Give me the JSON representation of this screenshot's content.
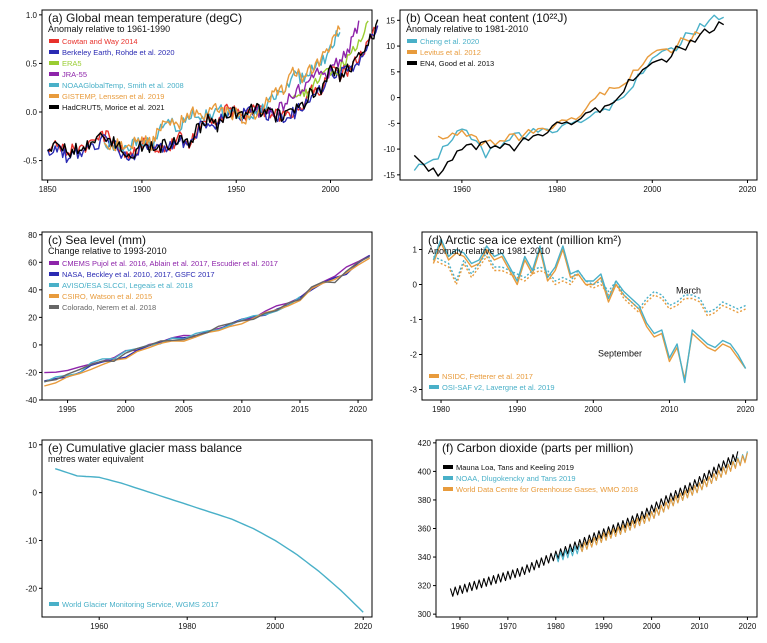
{
  "chart_data": [
    {
      "id": "a",
      "type": "line",
      "title": "(a) Global mean temperature (degC)",
      "subtitle": "Anomaly relative to 1961-1990",
      "xlim": [
        1847,
        2022
      ],
      "ylim": [
        -0.7,
        1.05
      ],
      "xticks": [
        1850,
        1900,
        1950,
        2000
      ],
      "yticks": [
        -0.5,
        0.0,
        0.5,
        1.0
      ],
      "ytick_labels": [
        "-0.5",
        "0.0",
        "0.5",
        "1.0"
      ],
      "legend_placement": "top-left",
      "x_step": 5,
      "series": [
        {
          "name": "Cowtan and Way 2014",
          "color": "#e8312b",
          "x_start": 1850,
          "values": [
            -0.36,
            -0.3,
            -0.4,
            -0.37,
            -0.36,
            -0.32,
            -0.24,
            -0.29,
            -0.4,
            -0.44,
            -0.33,
            -0.36,
            -0.35,
            -0.33,
            -0.27,
            -0.33,
            -0.15,
            -0.07,
            -0.13,
            0.02,
            0.0,
            -0.02,
            0.05,
            0.0,
            -0.03,
            -0.05,
            -0.01,
            0.07,
            0.22,
            0.24,
            0.43,
            0.38,
            0.45,
            0.55,
            0.68,
            0.92
          ]
        },
        {
          "name": "Berkeley Earth, Rohde et al. 2020",
          "color": "#2b2bb3",
          "x_start": 1850,
          "values": [
            -0.42,
            -0.36,
            -0.45,
            -0.42,
            -0.4,
            -0.36,
            -0.28,
            -0.33,
            -0.44,
            -0.48,
            -0.36,
            -0.38,
            -0.37,
            -0.35,
            -0.29,
            -0.35,
            -0.17,
            -0.09,
            -0.15,
            0.0,
            -0.02,
            -0.03,
            0.04,
            0.0,
            -0.04,
            -0.06,
            -0.02,
            0.06,
            0.2,
            0.23,
            0.42,
            0.38,
            0.44,
            0.55,
            0.7,
            0.9
          ]
        },
        {
          "name": "ERA5",
          "color": "#9acd32",
          "x_start": 1980,
          "values": [
            0.08,
            0.2,
            0.22,
            0.42,
            0.4,
            0.46,
            0.56,
            0.72,
            0.95
          ]
        },
        {
          "name": "JRA-55",
          "color": "#8e24aa",
          "x_start": 1960,
          "values": [
            -0.03,
            0.02,
            0.0,
            0.05,
            0.2,
            0.22,
            0.4,
            0.37,
            0.43,
            0.52,
            0.67,
            0.88
          ]
        },
        {
          "name": "NOAAGlobalTemp, Smith et al. 2008",
          "color": "#49b0c8",
          "x_start": 1880,
          "values": [
            -0.38,
            -0.34,
            -0.36,
            -0.33,
            -0.3,
            -0.35,
            -0.17,
            -0.1,
            -0.15,
            -0.01,
            -0.02,
            -0.04,
            0.03,
            -0.02,
            -0.04,
            -0.07,
            -0.03,
            0.04,
            0.19,
            0.2,
            0.4,
            0.35,
            0.42,
            0.5,
            0.64,
            0.86
          ]
        },
        {
          "name": "GISTEMP, Lenssen et al. 2019",
          "color": "#e89b3c",
          "x_start": 1880,
          "values": [
            -0.36,
            -0.33,
            -0.35,
            -0.31,
            -0.28,
            -0.33,
            -0.15,
            -0.09,
            -0.13,
            0.0,
            -0.01,
            -0.03,
            0.04,
            -0.01,
            -0.03,
            -0.06,
            -0.02,
            0.06,
            0.21,
            0.23,
            0.42,
            0.37,
            0.44,
            0.54,
            0.68,
            0.9
          ]
        },
        {
          "name": "HadCRUT5, Morice et al. 2021",
          "color": "#000000",
          "x_start": 1850,
          "values": [
            -0.38,
            -0.31,
            -0.41,
            -0.39,
            -0.37,
            -0.33,
            -0.25,
            -0.3,
            -0.41,
            -0.45,
            -0.34,
            -0.37,
            -0.36,
            -0.34,
            -0.28,
            -0.34,
            -0.16,
            -0.08,
            -0.14,
            0.01,
            -0.01,
            -0.02,
            0.05,
            0.0,
            -0.03,
            -0.05,
            -0.01,
            0.07,
            0.21,
            0.24,
            0.43,
            0.38,
            0.45,
            0.55,
            0.69,
            0.91
          ]
        }
      ]
    },
    {
      "id": "b",
      "type": "line",
      "title": "(b) Ocean heat content (10²²J)",
      "subtitle": "Anomaly relative to 1981-2010",
      "xlim": [
        1947,
        2022
      ],
      "ylim": [
        -16,
        17
      ],
      "xticks": [
        1960,
        1980,
        2000,
        2020
      ],
      "yticks": [
        -15,
        -10,
        -5,
        0,
        5,
        10,
        15
      ],
      "ytick_labels": [
        "-15",
        "-10",
        "-5",
        "0",
        "5",
        "10",
        "15"
      ],
      "legend_placement": "top-left",
      "x_step": 5,
      "series": [
        {
          "name": "Cheng et al. 2020",
          "color": "#49b0c8",
          "x_start": 1950,
          "values": [
            -14,
            -11,
            -6,
            -11,
            -8,
            -7,
            -6,
            -4,
            -3,
            2,
            7,
            10,
            14,
            16
          ]
        },
        {
          "name": "Levitus et al. 2012",
          "color": "#e89b3c",
          "x_start": 1955,
          "values": [
            -8,
            -7,
            -9,
            -8,
            -7,
            -5,
            -3,
            1,
            4,
            8,
            10,
            13
          ]
        },
        {
          "name": "EN4, Good et al. 2013",
          "color": "#000000",
          "x_start": 1950,
          "values": [
            -11,
            -15,
            -10,
            -9,
            -10,
            -8,
            -5,
            -4,
            -2,
            3,
            6,
            9,
            12,
            14.5
          ]
        }
      ]
    },
    {
      "id": "c",
      "type": "line",
      "title": "(c) Sea level (mm)",
      "subtitle": "Change relative to 1993-2010",
      "xlim": [
        1992.8,
        2021.2
      ],
      "ylim": [
        -40,
        82
      ],
      "xticks": [
        1995,
        2000,
        2005,
        2010,
        2015,
        2020
      ],
      "yticks": [
        -40,
        -20,
        0,
        20,
        40,
        60,
        80
      ],
      "ytick_labels": [
        "-40",
        "-20",
        "0",
        "20",
        "40",
        "60",
        "80"
      ],
      "legend_placement": "top-left",
      "x_step": 1,
      "series": [
        {
          "name": "CMEMS Pujol et al. 2016, Ablain et al. 2017, Escudier et al. 2017",
          "color": "#8e24aa",
          "x_start": 1993,
          "values": [
            -22,
            -20,
            -18,
            -17,
            -14,
            -11,
            -9,
            -5,
            -2,
            0,
            2,
            4,
            6,
            8,
            10,
            12,
            15,
            18,
            20,
            24,
            27,
            30,
            35,
            42,
            45,
            48,
            55,
            60,
            65
          ]
        },
        {
          "name": "NASA, Beckley et al. 2010, 2017, GSFC 2017",
          "color": "#2b2bb3",
          "x_start": 1993,
          "values": [
            -28,
            -25,
            -22,
            -20,
            -16,
            -13,
            -11,
            -7,
            -4,
            -1,
            1,
            3,
            5,
            7,
            10,
            12,
            14,
            17,
            20,
            23,
            26,
            30,
            34,
            41,
            44,
            47,
            53,
            59,
            64
          ]
        },
        {
          "name": "AVISO/ESA SLCCI, Legeais et al. 2018",
          "color": "#49b0c8",
          "x_start": 1993,
          "values": [
            -26,
            -23,
            -21,
            -19,
            -15,
            -12,
            -10,
            -6,
            -3,
            -0.5,
            1.5,
            3.5,
            5.5,
            7.5,
            10,
            12,
            14.5,
            17.5,
            20.5,
            23.5,
            26.5,
            30,
            34.5
          ]
        },
        {
          "name": "CSIRO, Watson et al. 2015",
          "color": "#e89b3c",
          "x_start": 1993,
          "values": [
            -30,
            -27,
            -24,
            -21,
            -17,
            -14,
            -12,
            -8,
            -5,
            -2,
            0,
            2,
            4,
            6,
            9,
            11,
            13,
            16,
            19,
            22,
            25,
            29,
            33,
            40,
            43,
            46,
            52,
            58,
            63
          ]
        },
        {
          "name": "Colorado, Nerem et al. 2018",
          "color": "#666666",
          "x_start": 1993,
          "values": [
            -27,
            -24,
            -21,
            -19,
            -15,
            -12,
            -10,
            -6,
            -3,
            -1,
            1,
            3,
            5,
            7,
            10,
            12,
            14,
            17,
            20,
            23,
            26,
            30,
            34,
            41,
            44,
            47,
            53,
            59,
            64
          ]
        }
      ]
    },
    {
      "id": "d",
      "type": "line",
      "title": "(d) Arctic sea ice extent (million km²)",
      "subtitle": "Anomaly relative to 1981-2010",
      "xlim": [
        1977.5,
        2021.5
      ],
      "ylim": [
        -3.3,
        1.5
      ],
      "xticks": [
        1980,
        1990,
        2000,
        2010,
        2020
      ],
      "yticks": [
        -3,
        -2,
        -1,
        0,
        1
      ],
      "ytick_labels": [
        "-3",
        "-2",
        "-1",
        "0",
        "1"
      ],
      "legend_placement": "bottom-left",
      "annotations": [
        {
          "text": "March",
          "x": 2012.5,
          "y": -0.25
        },
        {
          "text": "September",
          "x": 2003.5,
          "y": -2.05
        }
      ],
      "x_step": 1,
      "series": [
        {
          "name": "NSIDC, Fetterer et al. 2017",
          "color": "#e89b3c",
          "style": "solid",
          "x_start": 1979,
          "values": [
            0.6,
            1.2,
            0.7,
            0.9,
            0.8,
            0.5,
            0.6,
            1.0,
            0.7,
            0.8,
            0.4,
            0.0,
            0.7,
            0.3,
            1.0,
            0.1,
            0.4,
            1.0,
            0.2,
            0.3,
            0.0,
            0.0,
            0.2,
            -0.5,
            0.0,
            -0.3,
            -0.5,
            -0.7,
            -1.2,
            -1.5,
            -1.4,
            -2.2,
            -1.8,
            -2.7,
            -1.4,
            -1.6,
            -1.8,
            -1.9,
            -1.7,
            -1.8,
            -2.1,
            -2.4
          ]
        },
        {
          "name": "OSI-SAF v2, Lavergne et al. 2019",
          "color": "#49b0c8",
          "style": "solid",
          "x_start": 1979,
          "values": [
            0.7,
            1.3,
            0.8,
            1.0,
            0.9,
            0.6,
            0.7,
            1.1,
            0.8,
            0.9,
            0.5,
            0.1,
            0.8,
            0.4,
            1.1,
            0.2,
            0.5,
            1.1,
            0.3,
            0.4,
            0.1,
            0.1,
            0.3,
            -0.4,
            0.1,
            -0.2,
            -0.4,
            -0.6,
            -1.1,
            -1.4,
            -1.3,
            -2.1,
            -1.7,
            -2.8,
            -1.3,
            -1.5,
            -1.7,
            -1.8,
            -1.6,
            -1.7,
            -2.0,
            -2.4
          ]
        },
        {
          "name": "",
          "color": "#e89b3c",
          "style": "dotted",
          "x_start": 1979,
          "values": [
            0.7,
            0.6,
            0.5,
            0.0,
            0.6,
            0.2,
            0.5,
            0.8,
            0.4,
            0.4,
            0.3,
            0.2,
            0.1,
            0.3,
            0.4,
            0.3,
            0.0,
            0.1,
            0.0,
            0.3,
            0.0,
            -0.1,
            0.0,
            -0.3,
            0.0,
            -0.4,
            -0.6,
            -0.8,
            -0.5,
            -0.3,
            -0.4,
            -0.7,
            -0.6,
            -0.4,
            -0.4,
            -0.5,
            -0.9,
            -0.8,
            -0.6,
            -0.7,
            -0.8,
            -0.7
          ]
        },
        {
          "name": "",
          "color": "#49b0c8",
          "style": "dotted",
          "x_start": 1979,
          "values": [
            0.8,
            0.7,
            0.6,
            0.1,
            0.7,
            0.3,
            0.6,
            0.9,
            0.5,
            0.5,
            0.4,
            0.3,
            0.2,
            0.4,
            0.5,
            0.4,
            0.1,
            0.2,
            0.1,
            0.4,
            0.1,
            0.0,
            0.1,
            -0.2,
            0.1,
            -0.3,
            -0.5,
            -0.7,
            -0.4,
            -0.2,
            -0.3,
            -0.6,
            -0.5,
            -0.3,
            -0.3,
            -0.4,
            -0.8,
            -0.7,
            -0.5,
            -0.6,
            -0.7,
            -0.6
          ]
        }
      ]
    },
    {
      "id": "e",
      "type": "line",
      "title": "(e) Cumulative glacier mass balance",
      "subtitle": "metres water equivalent",
      "xlim": [
        1947,
        2022
      ],
      "ylim": [
        -26,
        11
      ],
      "xticks": [
        1960,
        1980,
        2000,
        2020
      ],
      "yticks": [
        -20,
        -10,
        0,
        10
      ],
      "ytick_labels": [
        "-20",
        "-10",
        "0",
        "10"
      ],
      "legend_placement": "bottom-left",
      "x_step": 5,
      "series": [
        {
          "name": "World Glacier Monitoring Service, WGMS 2017",
          "color": "#49b0c8",
          "x_start": 1950,
          "values": [
            5.0,
            3.5,
            3.2,
            2.0,
            0.5,
            -1.0,
            -2.5,
            -4.0,
            -5.5,
            -7.5,
            -10.0,
            -13.0,
            -16.5,
            -20.5,
            -25.0
          ]
        }
      ]
    },
    {
      "id": "f",
      "type": "line",
      "title": "(f) Carbon dioxide (parts per million)",
      "subtitle": "",
      "xlim": [
        1955,
        2022
      ],
      "ylim": [
        298,
        422
      ],
      "xticks": [
        1960,
        1970,
        1980,
        1990,
        2000,
        2010,
        2020
      ],
      "yticks": [
        300,
        320,
        340,
        360,
        380,
        400,
        420
      ],
      "ytick_labels": [
        "300",
        "320",
        "340",
        "360",
        "380",
        "400",
        "420"
      ],
      "legend_placement": "top-left",
      "x_step": 5,
      "seasonal_amplitude_ppm": 3,
      "series": [
        {
          "name": "Mauna Loa, Tans and Keeling 2019",
          "color": "#000000",
          "x_start": 1958,
          "values": [
            315,
            320,
            325,
            330,
            338,
            346,
            354,
            361,
            369,
            380,
            389,
            400,
            411
          ]
        },
        {
          "name": "NOAA, Dlugokencky and Tans 2019",
          "color": "#49b0c8",
          "x_start": 1980,
          "values": [
            339,
            346,
            354,
            361,
            369,
            380,
            389,
            400,
            411
          ]
        },
        {
          "name": "World Data Centre for Greenhouse Gases, WMO 2018",
          "color": "#e89b3c",
          "x_start": 1985,
          "values": [
            346,
            354,
            361,
            369,
            380,
            389,
            400,
            410
          ]
        }
      ]
    }
  ]
}
